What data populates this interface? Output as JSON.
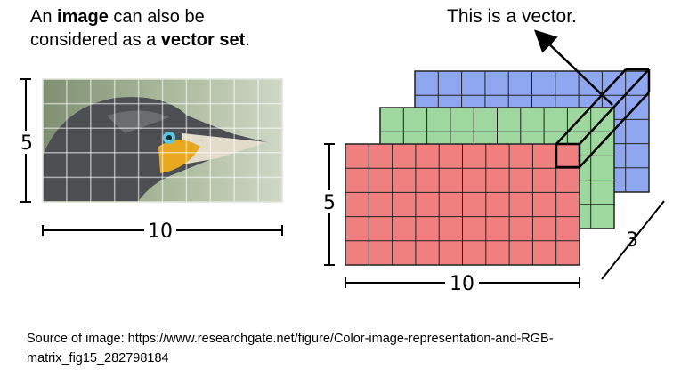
{
  "caption": {
    "line1_prefix": "An ",
    "line1_bold": "image",
    "line1_suffix": " can also be",
    "line2_prefix": "considered as a ",
    "line2_bold": "vector set",
    "line2_suffix": "."
  },
  "vector_label": "This is a vector.",
  "image_grid": {
    "rows": 5,
    "cols": 10,
    "height_label": "5",
    "width_label": "10"
  },
  "rgb_stack": {
    "rows": 5,
    "cols": 10,
    "height_label": "5",
    "width_label": "10",
    "depth_label": "3",
    "colors": {
      "red": "#f08080",
      "green": "#9ed89e",
      "blue": "#8fa6f0",
      "grid_line": "#222222"
    }
  },
  "source_text": "Source of image: https://www.researchgate.net/figure/Color-image-representation-and-RGB-matrix_fig15_282798184"
}
